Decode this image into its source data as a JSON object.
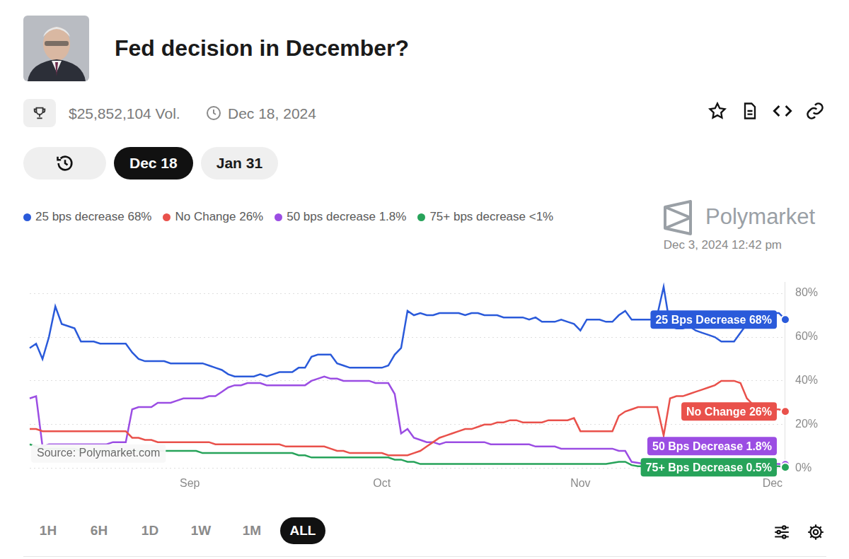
{
  "page": {
    "volume": "$25,852,104 Vol.",
    "end_date": "Dec 18, 2024",
    "tabs": [
      "Dec 18",
      "Jan 31"
    ],
    "active_tab": "Dec 18",
    "brand": "Polymarket",
    "timestamp": "Dec 3, 2024 12:42 pm",
    "source": "Source: Polymarket.com",
    "ranges": [
      "1H",
      "6H",
      "1D",
      "1W",
      "1M",
      "ALL"
    ],
    "active_range": "ALL"
  },
  "chart_data": {
    "type": "line",
    "title": "Fed decision in December?",
    "categories": [
      null,
      null,
      null,
      null,
      null,
      null,
      null,
      null,
      null,
      null,
      null,
      null,
      null,
      null,
      null,
      null,
      null,
      null,
      null,
      null,
      null,
      null,
      null,
      null,
      null,
      "Sep",
      null,
      null,
      null,
      null,
      null,
      null,
      null,
      null,
      null,
      null,
      null,
      null,
      null,
      null,
      null,
      null,
      null,
      null,
      null,
      null,
      null,
      null,
      null,
      null,
      null,
      null,
      null,
      null,
      null,
      "Oct",
      null,
      null,
      null,
      null,
      null,
      null,
      null,
      null,
      null,
      null,
      null,
      null,
      null,
      null,
      null,
      null,
      null,
      null,
      null,
      null,
      null,
      null,
      null,
      null,
      null,
      null,
      null,
      null,
      null,
      null,
      "Nov",
      null,
      null,
      null,
      null,
      null,
      null,
      null,
      null,
      null,
      null,
      null,
      null,
      null,
      null,
      null,
      null,
      null,
      null,
      null,
      null,
      null,
      null,
      null,
      null,
      null,
      null,
      null,
      null,
      null,
      "Dec",
      null,
      null
    ],
    "series": [
      {
        "name": "25 bps decrease 68%",
        "label": "25 Bps Decrease 68%",
        "color": "#2a5ada",
        "values": [
          55,
          57,
          50,
          60,
          74,
          66,
          65,
          64,
          58,
          58,
          58,
          57,
          57,
          57,
          57,
          57,
          53,
          50,
          49,
          49,
          49,
          49,
          48,
          48,
          48,
          48,
          48,
          48,
          47,
          46,
          45,
          43,
          42,
          42,
          42,
          42,
          43,
          42,
          43,
          44,
          44,
          44,
          46,
          46,
          51,
          52,
          52,
          52,
          48,
          47,
          46,
          46,
          46,
          46,
          46,
          46,
          47,
          52,
          55,
          72,
          70,
          71,
          70,
          70,
          71,
          71,
          71,
          71,
          70,
          71,
          71,
          70,
          70,
          70,
          69,
          69,
          69,
          69,
          68,
          69,
          67,
          67,
          67,
          68,
          67,
          66,
          63,
          68,
          68,
          68,
          67,
          67,
          70,
          72,
          68,
          68,
          68,
          68,
          70,
          83,
          65,
          64,
          64,
          65,
          63,
          62,
          61,
          60,
          58,
          58,
          58,
          62,
          66,
          70,
          70,
          70,
          71,
          71,
          68
        ]
      },
      {
        "name": "No Change 26%",
        "label": "No Change 26%",
        "color": "#e9514b",
        "values": [
          18,
          18,
          17,
          17,
          17,
          17,
          17,
          17,
          17,
          17,
          17,
          17,
          17,
          17,
          17,
          17,
          14,
          14,
          13,
          13,
          12,
          12,
          12,
          12,
          12,
          12,
          12,
          12,
          12,
          11,
          11,
          11,
          11,
          11,
          11,
          11,
          11,
          11,
          11,
          11,
          10,
          10,
          10,
          10,
          10,
          10,
          10,
          9,
          8,
          8,
          7,
          7,
          7,
          7,
          7,
          7,
          6,
          6,
          6,
          6,
          7,
          8,
          10,
          12,
          14,
          15,
          16,
          17,
          18,
          18,
          19,
          20,
          20,
          21,
          21,
          22,
          22,
          21,
          21,
          21,
          21,
          22,
          22,
          22,
          22,
          23,
          17,
          17,
          17,
          17,
          17,
          17,
          24,
          26,
          27,
          28,
          28,
          28,
          28,
          15,
          32,
          33,
          33,
          34,
          35,
          36,
          37,
          38,
          40,
          40,
          40,
          39,
          32,
          29,
          28,
          27,
          27,
          27,
          26
        ]
      },
      {
        "name": "50 bps decrease 1.8%",
        "label": "50 Bps Decrease 1.8%",
        "color": "#9b4de3",
        "values": [
          32,
          33,
          10,
          11,
          11,
          11,
          11,
          11,
          11,
          11,
          11,
          11,
          11,
          12,
          12,
          12,
          27,
          28,
          28,
          28,
          30,
          30,
          30,
          31,
          32,
          32,
          32,
          32,
          33,
          33,
          35,
          37,
          38,
          38,
          39,
          39,
          39,
          38,
          38,
          38,
          38,
          38,
          38,
          38,
          40,
          41,
          42,
          41,
          41,
          40,
          40,
          40,
          40,
          40,
          39,
          39,
          39,
          34,
          16,
          18,
          14,
          13,
          12,
          12,
          11,
          12,
          12,
          12,
          12,
          12,
          12,
          12,
          11,
          11,
          11,
          11,
          11,
          11,
          11,
          10,
          10,
          10,
          10,
          9,
          9,
          9,
          9,
          9,
          9,
          9,
          9,
          9,
          8,
          8,
          3,
          2.5,
          2,
          2,
          2,
          2,
          2,
          2,
          2,
          2,
          2,
          2,
          2,
          2,
          2,
          2,
          2,
          2,
          2,
          2,
          2,
          2,
          2,
          2,
          1.8
        ]
      },
      {
        "name": "75+ bps decrease <1%",
        "label": "75+ Bps Decrease 0.5%",
        "color": "#27a35a",
        "values": [
          11,
          10,
          9,
          9,
          9,
          9,
          9,
          9,
          8,
          8,
          8,
          8,
          8,
          8,
          8,
          8,
          8,
          8,
          8,
          8,
          8,
          8,
          8,
          8,
          8,
          8,
          8,
          7,
          7,
          7,
          7,
          7,
          7,
          7,
          7,
          7,
          7,
          7,
          7,
          7,
          7,
          7,
          6,
          6,
          5,
          5,
          5,
          5,
          5,
          5,
          5,
          5,
          5,
          5,
          5,
          5,
          5,
          4,
          4,
          3,
          3,
          2,
          2,
          2,
          2,
          2,
          2,
          2,
          2,
          2,
          2,
          2,
          2,
          2,
          2,
          2,
          2,
          2,
          2,
          2,
          2,
          2,
          2,
          2,
          2,
          2,
          2,
          2,
          2,
          2,
          2,
          2.5,
          3,
          3,
          1.5,
          1,
          1,
          1,
          1,
          1,
          1,
          1,
          1,
          1,
          1,
          1,
          1,
          1,
          1,
          1,
          1,
          1,
          1,
          1,
          1,
          1,
          1,
          1,
          0.5
        ]
      }
    ],
    "ylim": [
      0,
      85
    ],
    "yticks": [
      {
        "value": 0,
        "label": "0%"
      },
      {
        "value": 20,
        "label": "20%"
      },
      {
        "value": 40,
        "label": "40%"
      },
      {
        "value": 60,
        "label": "60%"
      },
      {
        "value": 80,
        "label": "80%"
      }
    ],
    "grid": true,
    "legend": "top"
  }
}
